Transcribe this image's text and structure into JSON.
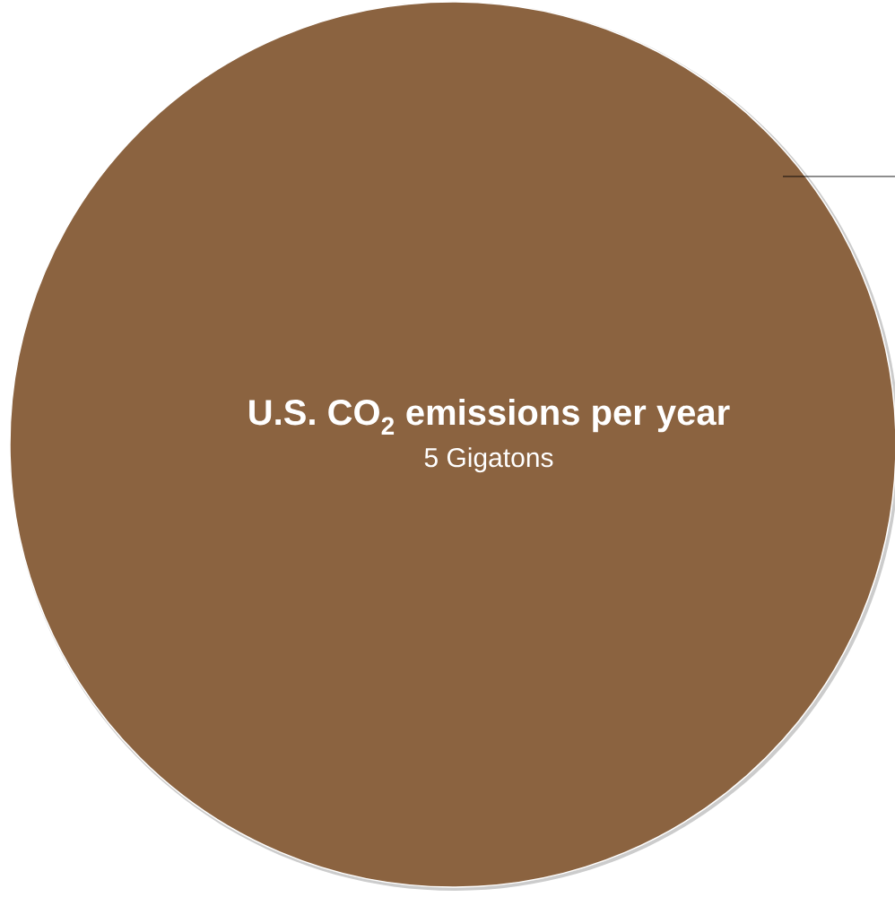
{
  "chart_data": {
    "type": "other",
    "categories": [
      "U.S. CO$_{2}$ emissions per year"
    ],
    "values": [
      5
    ],
    "value_labels": [
      "5 Gigatons"
    ],
    "colors": [
      "#8b6340"
    ]
  }
}
